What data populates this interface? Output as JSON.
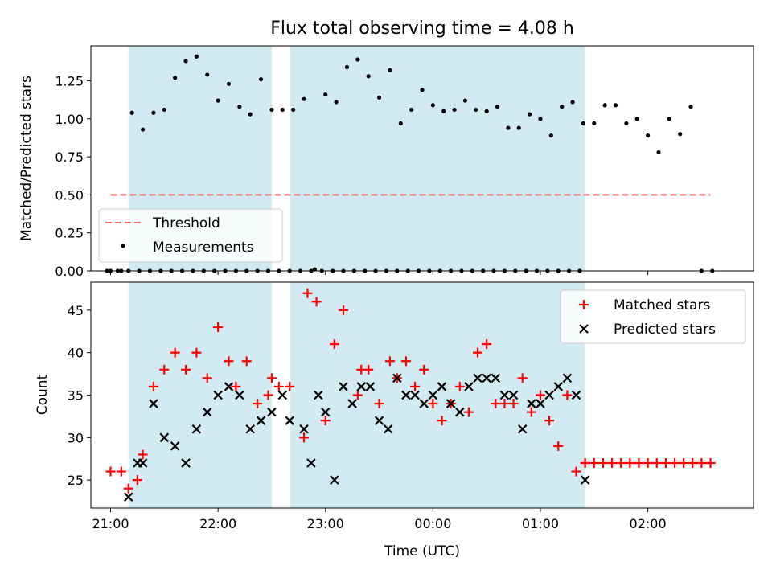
{
  "chart_data": [
    {
      "type": "scatter",
      "title": "Flux total observing time = 4.08 h",
      "ylabel": "Matched/Predicted stars",
      "xlabel": "",
      "xlim": [
        "20:49",
        "02:59"
      ],
      "ylim": [
        0,
        1.48
      ],
      "x_ticks": [
        "21:00",
        "22:00",
        "23:00",
        "00:00",
        "01:00",
        "02:00"
      ],
      "y_ticks": [
        "0.00",
        "0.25",
        "0.50",
        "0.75",
        "1.00",
        "1.25"
      ],
      "shaded_intervals": [
        [
          "21:10",
          "22:30"
        ],
        [
          "22:40",
          "01:25"
        ]
      ],
      "shade_color": "#add8e6",
      "threshold": {
        "name": "Threshold",
        "value": 0.5,
        "x_range": [
          "21:00",
          "02:35"
        ],
        "color": "#ff6666"
      },
      "legend_position": "lower-left",
      "series": [
        {
          "name": "Measurements",
          "color": "#000000",
          "marker": "dot",
          "x": [
            "21:00",
            "21:06",
            "21:12",
            "21:18",
            "21:24",
            "21:30",
            "21:36",
            "21:42",
            "21:48",
            "21:54",
            "22:00",
            "22:06",
            "22:12",
            "22:18",
            "22:24",
            "22:30",
            "22:36",
            "22:42",
            "22:48",
            "22:54",
            "23:00",
            "23:06",
            "23:12",
            "23:18",
            "23:24",
            "23:30",
            "23:36",
            "23:42",
            "23:48",
            "23:54",
            "00:00",
            "00:06",
            "00:12",
            "00:18",
            "00:24",
            "00:30",
            "00:36",
            "00:42",
            "00:48",
            "00:54",
            "01:00",
            "01:06",
            "01:12",
            "01:18",
            "01:24",
            "01:30",
            "01:36",
            "01:42",
            "01:48",
            "01:54",
            "02:00",
            "02:06",
            "02:12",
            "02:18",
            "02:24",
            "02:30",
            "02:36",
            "20:58",
            "21:04",
            "21:10",
            "21:16",
            "21:22",
            "21:28",
            "21:34",
            "21:40",
            "21:46",
            "21:52",
            "21:58",
            "22:04",
            "22:10",
            "22:16",
            "22:22",
            "22:28",
            "22:34",
            "22:40",
            "22:46",
            "22:52",
            "22:58",
            "23:04",
            "23:10",
            "23:16",
            "23:22",
            "23:28",
            "23:34",
            "23:40",
            "23:46",
            "23:52",
            "23:58",
            "00:04",
            "00:10",
            "00:16",
            "00:22",
            "00:28",
            "00:34",
            "00:40",
            "00:46",
            "00:52",
            "00:58",
            "01:04",
            "01:10",
            "01:16",
            "01:22"
          ],
          "y": [
            0,
            0,
            1.04,
            0.93,
            1.04,
            1.06,
            1.27,
            1.38,
            1.41,
            1.29,
            1.12,
            1.23,
            1.08,
            1.03,
            1.26,
            1.06,
            1.06,
            1.06,
            1.13,
            0.01,
            1.16,
            1.11,
            1.34,
            1.39,
            1.28,
            1.14,
            1.32,
            0.97,
            1.06,
            1.19,
            1.09,
            1.05,
            1.06,
            1.12,
            1.06,
            1.05,
            1.08,
            0.94,
            0.94,
            1.03,
            1.0,
            0.89,
            1.08,
            1.11,
            0.97,
            0.97,
            1.09,
            1.09,
            0.97,
            1.0,
            0.89,
            0.78,
            1.0,
            0.9,
            1.08,
            0,
            0,
            0,
            0,
            0,
            0,
            0,
            0,
            0,
            0,
            0,
            0,
            0,
            0,
            0,
            0,
            0,
            0,
            0,
            0,
            0,
            0,
            0,
            0,
            0,
            0,
            0,
            0,
            0,
            0,
            0,
            0,
            0,
            0,
            0,
            0,
            0,
            0,
            0,
            0,
            0,
            0,
            0,
            0,
            0,
            0,
            0
          ],
          "x_index": [
            0,
            1,
            2,
            3,
            4,
            5,
            6,
            7,
            8,
            9,
            10,
            11,
            12,
            13,
            14,
            15,
            16,
            17,
            18,
            19,
            20,
            21,
            22,
            23,
            24,
            25,
            26,
            27,
            28,
            29,
            30,
            31,
            32,
            33,
            34,
            35,
            36,
            37,
            38,
            39,
            40,
            41,
            42,
            43,
            44,
            45,
            46,
            47,
            48,
            49,
            50,
            51,
            52,
            53,
            54,
            55,
            56,
            57,
            58,
            59,
            60,
            61,
            62,
            63,
            64,
            65,
            66,
            67,
            68,
            69,
            70,
            71,
            72,
            73,
            74,
            75,
            76,
            77,
            78,
            79,
            80,
            81,
            82,
            83,
            84,
            85,
            86,
            87,
            88,
            89,
            90,
            91,
            92,
            93,
            94,
            95,
            96,
            97,
            98,
            99,
            100,
            101
          ]
        }
      ]
    },
    {
      "type": "scatter",
      "title": "",
      "xlabel": "Time (UTC)",
      "ylabel": "Count",
      "xlim": [
        "20:49",
        "02:59"
      ],
      "ylim": [
        21.7,
        48.3
      ],
      "x_ticks": [
        "21:00",
        "22:00",
        "23:00",
        "00:00",
        "01:00",
        "02:00"
      ],
      "y_ticks": [
        "25",
        "30",
        "35",
        "40",
        "45"
      ],
      "shaded_intervals": [
        [
          "21:10",
          "22:30"
        ],
        [
          "22:40",
          "01:25"
        ]
      ],
      "shade_color": "#add8e6",
      "legend_position": "top-right",
      "series": [
        {
          "name": "Matched stars",
          "color": "#ff0000",
          "marker": "plus",
          "x": [
            "21:00",
            "21:06",
            "21:10",
            "21:15",
            "21:18",
            "21:24",
            "21:30",
            "21:36",
            "21:42",
            "21:48",
            "21:54",
            "22:00",
            "22:06",
            "22:10",
            "22:16",
            "22:22",
            "22:28",
            "22:30",
            "22:34",
            "22:40",
            "22:48",
            "22:50",
            "22:55",
            "23:00",
            "23:05",
            "23:10",
            "23:18",
            "23:20",
            "23:24",
            "23:30",
            "23:36",
            "23:40",
            "23:45",
            "23:50",
            "23:55",
            "00:00",
            "00:05",
            "00:10",
            "00:15",
            "00:20",
            "00:25",
            "00:30",
            "00:35",
            "00:40",
            "00:45",
            "00:50",
            "00:55",
            "01:00",
            "01:05",
            "01:10",
            "01:15",
            "01:20",
            "01:25",
            "01:30",
            "01:35",
            "01:40",
            "01:45",
            "01:50",
            "01:55",
            "02:00",
            "02:05",
            "02:10",
            "02:15",
            "02:20",
            "02:25",
            "02:30",
            "02:35"
          ],
          "y": [
            26,
            26,
            24,
            25,
            28,
            36,
            38,
            40,
            38,
            40,
            37,
            43,
            39,
            36,
            39,
            34,
            35,
            37,
            36,
            36,
            30,
            47,
            46,
            32,
            41,
            45,
            35,
            38,
            38,
            34,
            39,
            37,
            39,
            36,
            38,
            34,
            32,
            34,
            36,
            33,
            40,
            41,
            34,
            34,
            34,
            37,
            33,
            35,
            32,
            29,
            35,
            26,
            27,
            27,
            27,
            27,
            27,
            27,
            27,
            27,
            27,
            27,
            27,
            27,
            27,
            27,
            27
          ],
          "x_index": [
            0,
            1,
            2,
            3,
            4,
            5,
            6,
            7,
            8,
            9,
            10,
            11,
            12,
            13,
            14,
            15,
            16,
            17,
            18,
            19,
            20,
            21,
            22,
            23,
            24,
            25,
            26,
            27,
            28,
            29,
            30,
            31,
            32,
            33,
            34,
            35,
            36,
            37,
            38,
            39,
            40,
            41,
            42,
            43,
            44,
            45,
            46,
            47,
            48,
            49,
            50,
            51,
            52,
            53,
            54,
            55,
            56,
            57,
            58,
            59,
            60,
            61,
            62,
            63,
            64,
            65,
            66
          ]
        },
        {
          "name": "Predicted stars",
          "color": "#000000",
          "marker": "x",
          "x": [
            "21:10",
            "21:15",
            "21:18",
            "21:24",
            "21:30",
            "21:36",
            "21:42",
            "21:48",
            "21:54",
            "22:00",
            "22:06",
            "22:12",
            "22:18",
            "22:24",
            "22:30",
            "22:36",
            "22:40",
            "22:48",
            "22:52",
            "22:56",
            "23:00",
            "23:05",
            "23:10",
            "23:15",
            "23:20",
            "23:25",
            "23:30",
            "23:35",
            "23:40",
            "23:45",
            "23:50",
            "23:55",
            "00:00",
            "00:05",
            "00:10",
            "00:15",
            "00:20",
            "00:25",
            "00:30",
            "00:35",
            "00:40",
            "00:45",
            "00:50",
            "00:55",
            "01:00",
            "01:05",
            "01:10",
            "01:15",
            "01:20",
            "01:25"
          ],
          "y": [
            23,
            27,
            27,
            34,
            30,
            29,
            27,
            31,
            33,
            35,
            36,
            35,
            31,
            32,
            33,
            35,
            32,
            31,
            27,
            35,
            33,
            25,
            36,
            34,
            36,
            36,
            32,
            31,
            37,
            35,
            35,
            34,
            35,
            36,
            34,
            33,
            36,
            37,
            37,
            37,
            35,
            35,
            31,
            34,
            34,
            35,
            36,
            37,
            35,
            25
          ],
          "x_index": [
            0,
            1,
            2,
            3,
            4,
            5,
            6,
            7,
            8,
            9,
            10,
            11,
            12,
            13,
            14,
            15,
            16,
            17,
            18,
            19,
            20,
            21,
            22,
            23,
            24,
            25,
            26,
            27,
            28,
            29,
            30,
            31,
            32,
            33,
            34,
            35,
            36,
            37,
            38,
            39,
            40,
            41,
            42,
            43,
            44,
            45,
            46,
            47,
            48,
            49
          ]
        }
      ]
    }
  ]
}
